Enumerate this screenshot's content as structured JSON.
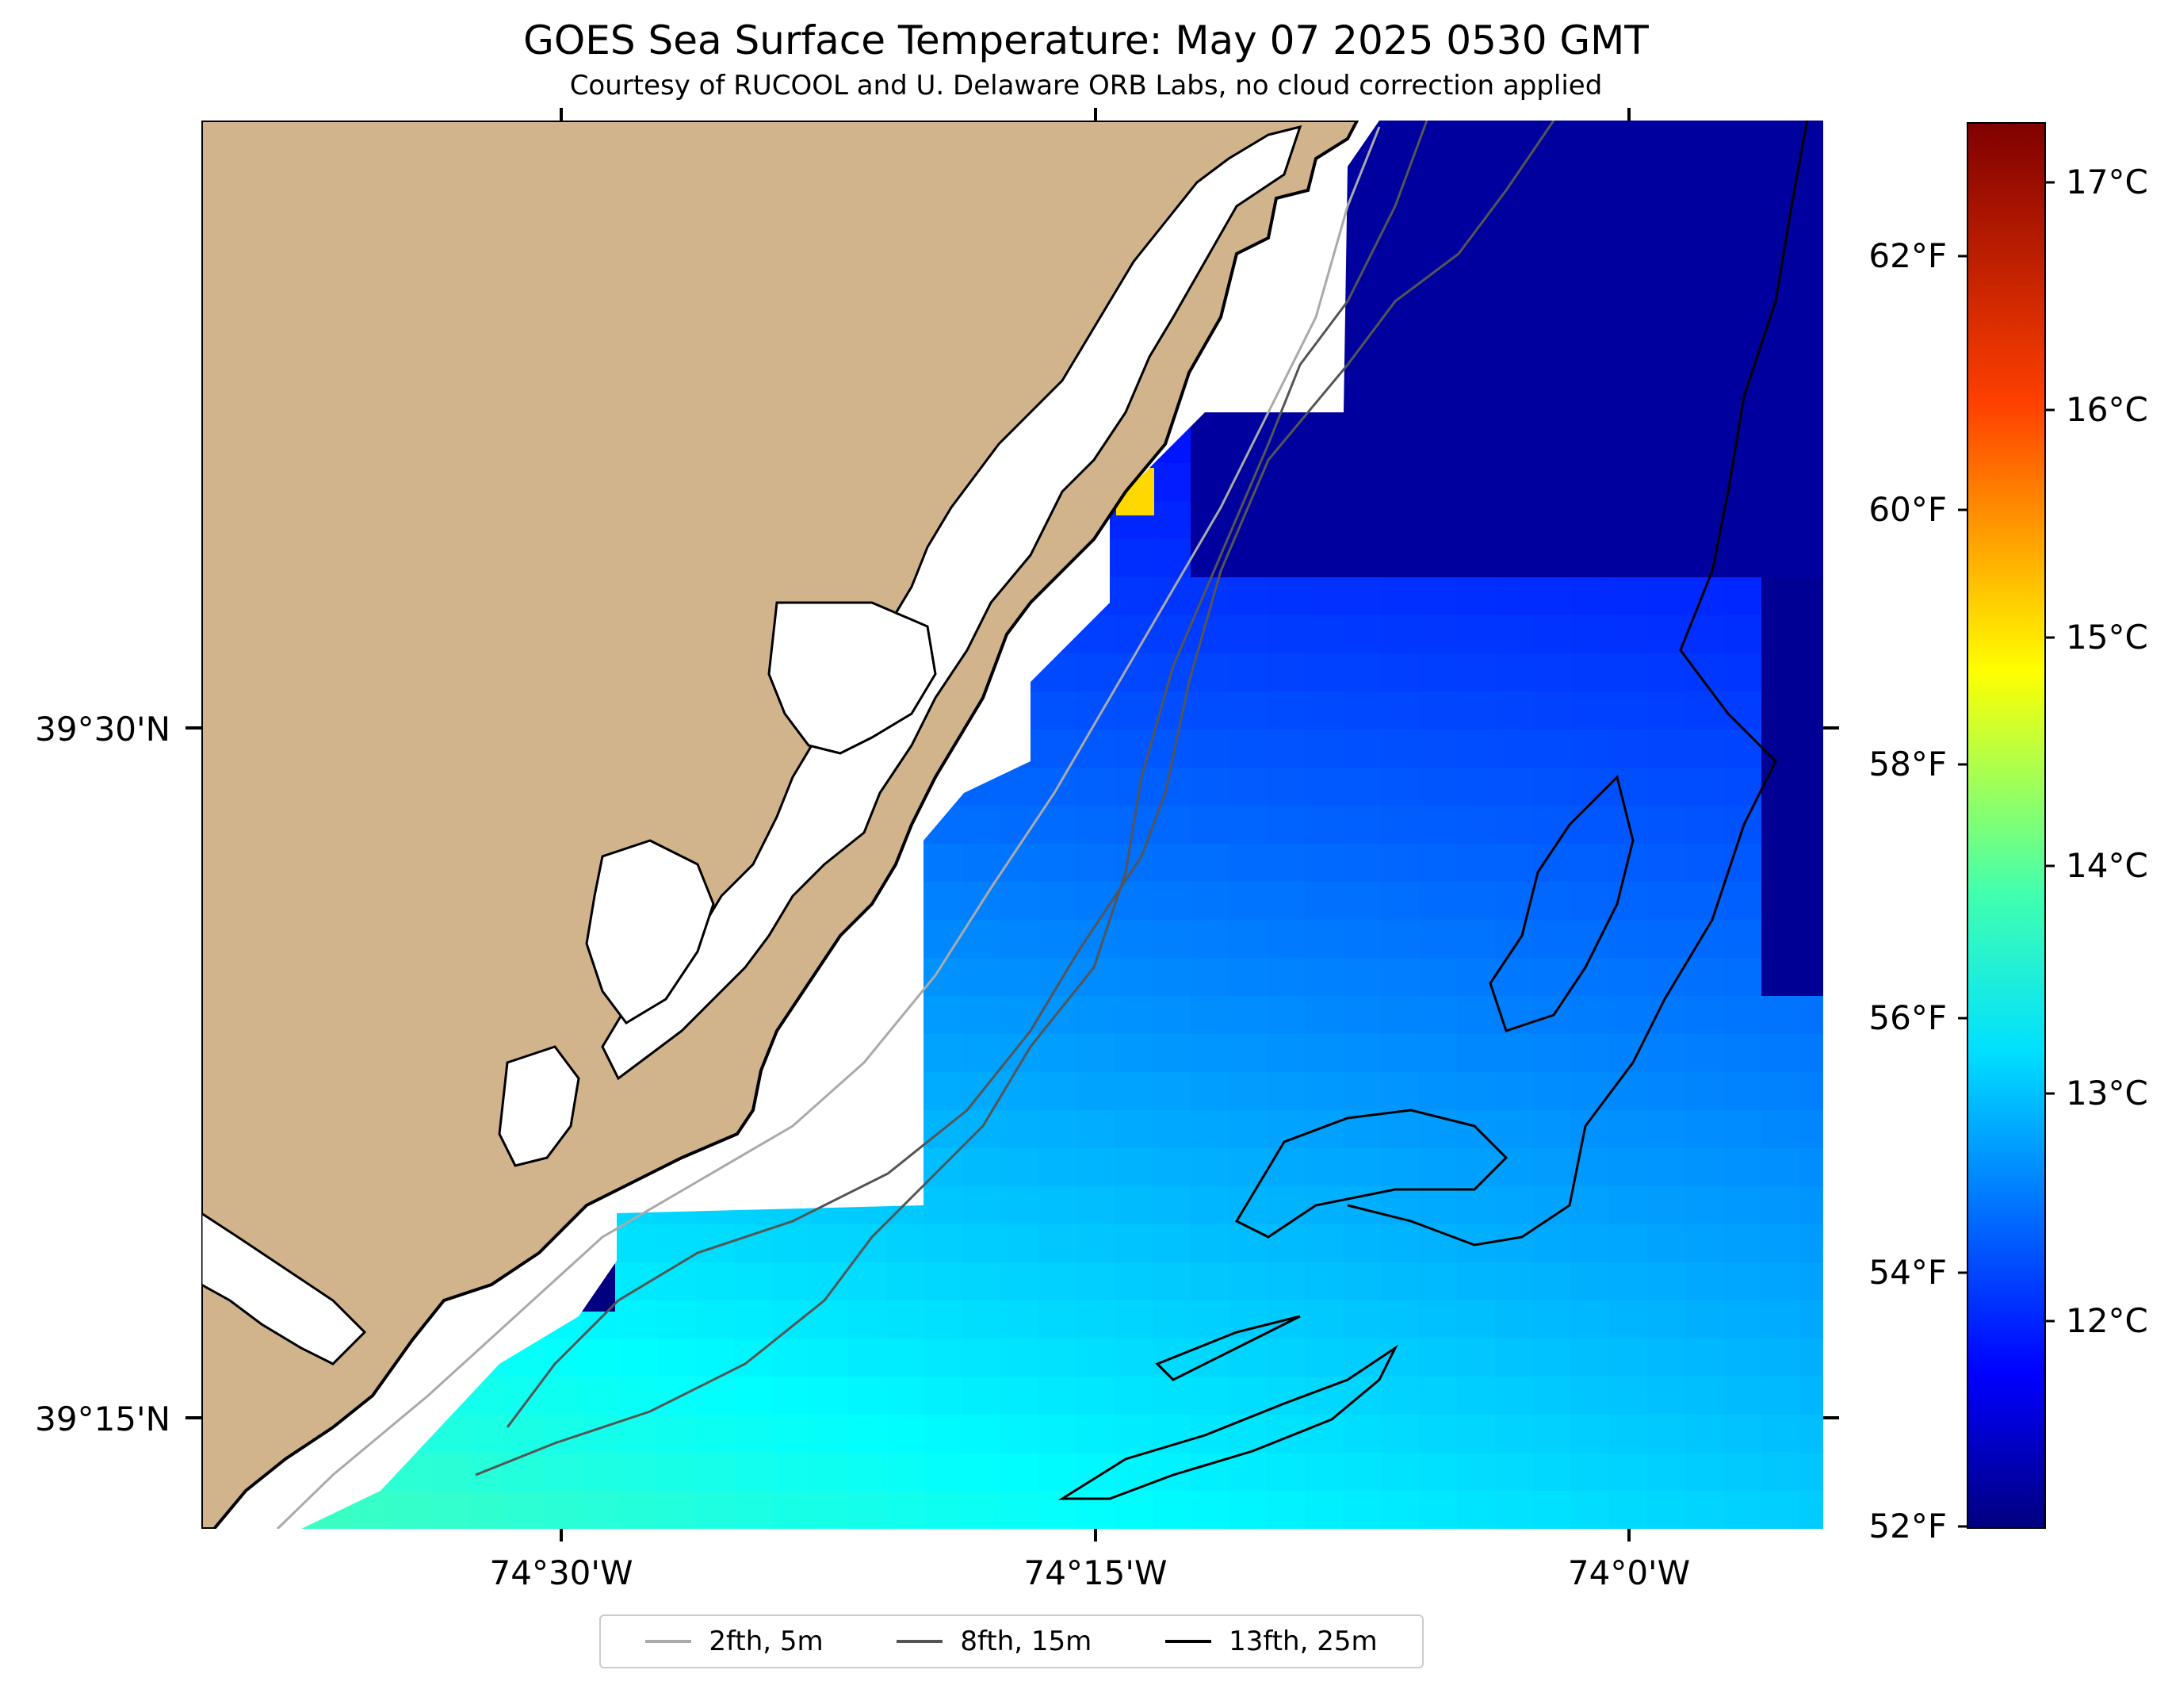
{
  "title": "GOES Sea Surface Temperature: May 07 2025 0530 GMT",
  "subtitle": "Courtesy of RUCOOL and U. Delaware ORB Labs, no cloud correction applied",
  "axes": {
    "y_labels": [
      "39°30'N",
      "39°15'N"
    ],
    "x_labels": [
      "74°30'W",
      "74°15'W",
      "74°0'W"
    ]
  },
  "colorbar": {
    "celsius_labels": [
      "17°C",
      "16°C",
      "15°C",
      "14°C",
      "13°C",
      "12°C"
    ],
    "fahrenheit_labels": [
      "62°F",
      "60°F",
      "58°F",
      "56°F",
      "54°F",
      "52°F"
    ],
    "colormap": "jet",
    "range_celsius": [
      11.1,
      17.3
    ]
  },
  "colors": {
    "land": "#d2b48c",
    "coastline": "#000000",
    "no_data": "#ffffff"
  },
  "legend": [
    {
      "label": "2fth, 5m",
      "color": "#aaaaaa"
    },
    {
      "label": "8fth, 15m",
      "color": "#555555"
    },
    {
      "label": "13fth, 25m",
      "color": "#000000"
    }
  ]
}
